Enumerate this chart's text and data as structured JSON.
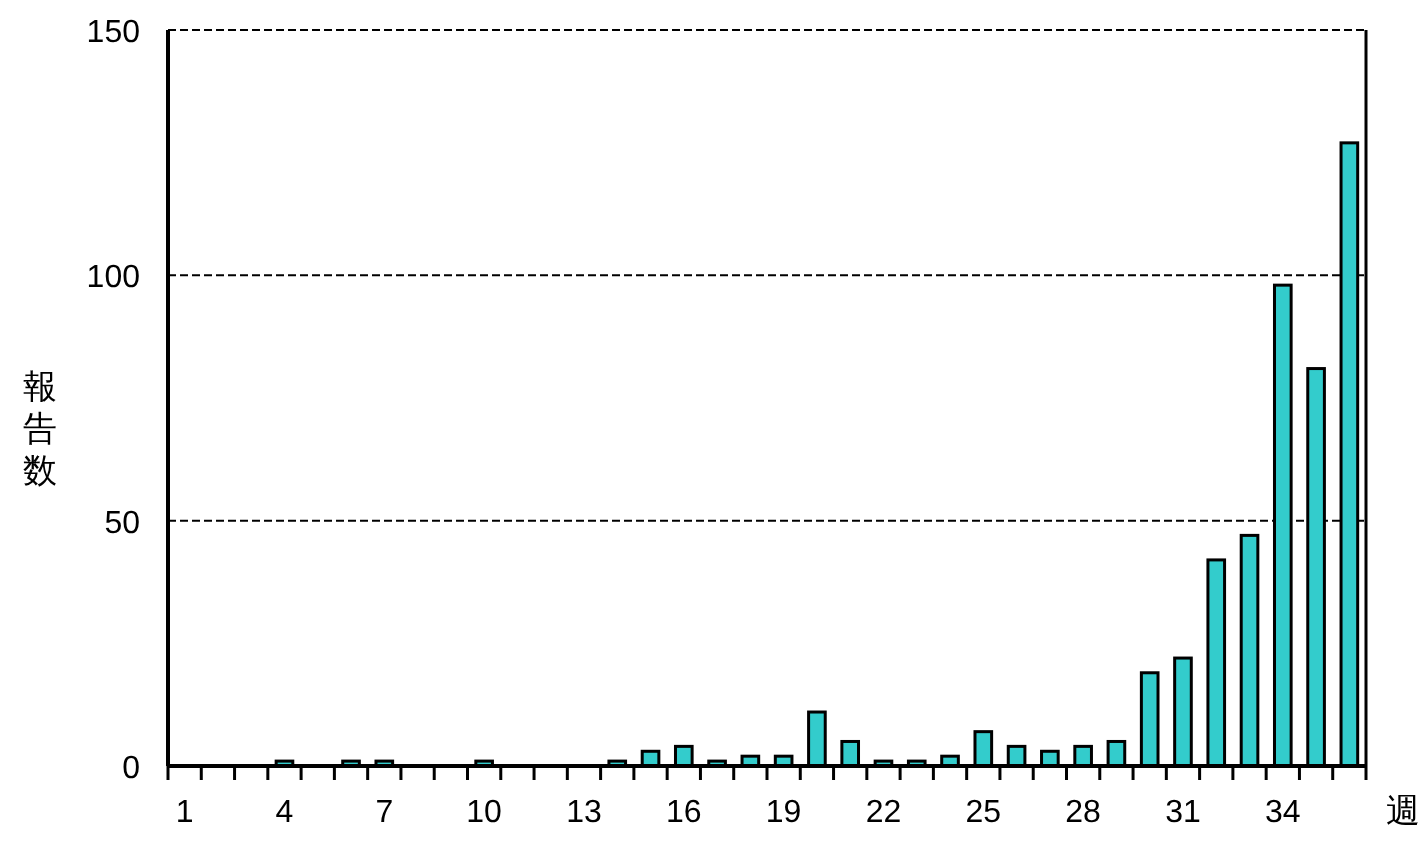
{
  "chart_data": {
    "type": "bar",
    "xlabel": "週",
    "ylabel": "報告数",
    "categories": [
      "1",
      null,
      null,
      "4",
      null,
      null,
      "7",
      null,
      null,
      "10",
      null,
      null,
      "13",
      null,
      null,
      "16",
      null,
      null,
      "19",
      null,
      null,
      "22",
      null,
      null,
      "25",
      null,
      null,
      "28",
      null,
      null,
      "31",
      null,
      null,
      "34",
      null,
      null
    ],
    "values": [
      0,
      0,
      0,
      1,
      0,
      1,
      1,
      0,
      0,
      1,
      0,
      0,
      0,
      1,
      3,
      4,
      1,
      2,
      2,
      11,
      5,
      1,
      1,
      2,
      7,
      4,
      3,
      4,
      5,
      19,
      22,
      42,
      47,
      98,
      81,
      127
    ],
    "color": "#33cccc",
    "ylim": [
      0,
      150
    ],
    "yticks": [
      0,
      50,
      100,
      150
    ],
    "grid": "y"
  }
}
